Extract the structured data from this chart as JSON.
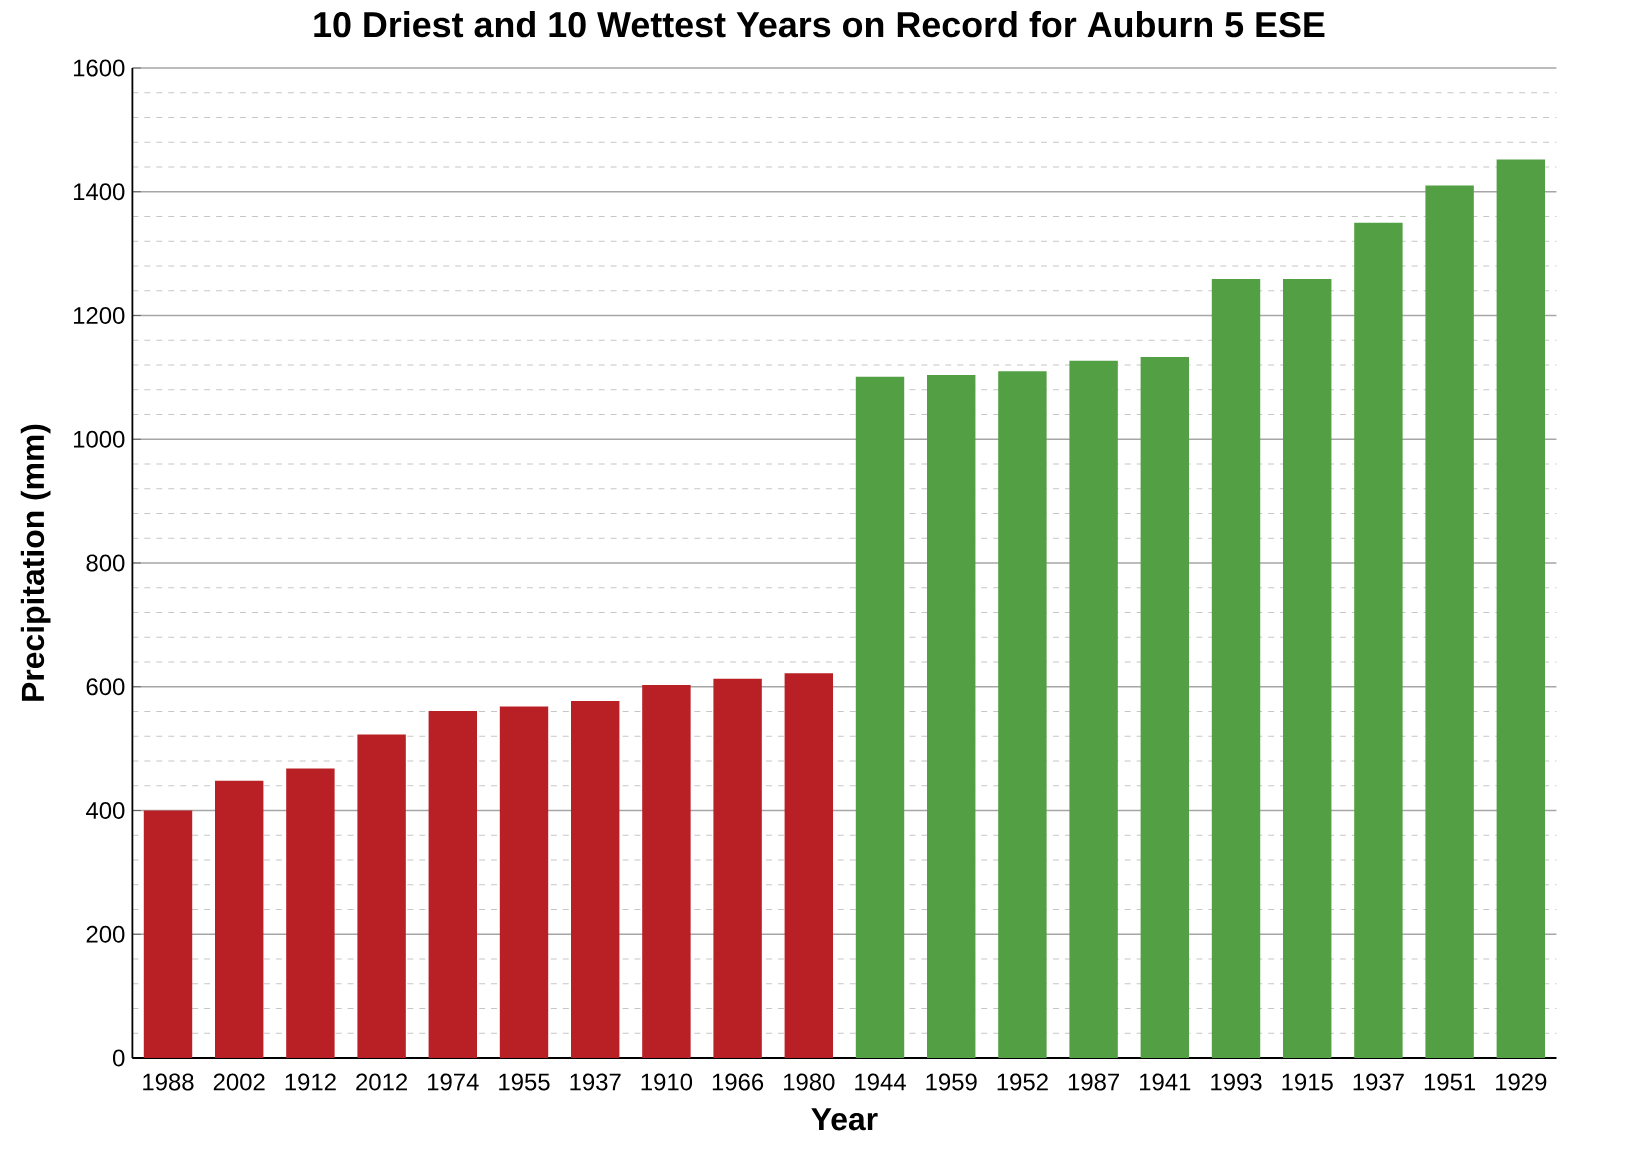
{
  "chart_data": {
    "type": "bar",
    "title": "10 Driest and 10 Wettest Years on Record for Auburn 5 ESE",
    "xlabel": "Year",
    "ylabel": "Precipitation (mm)",
    "categories": [
      "1988",
      "2002",
      "1912",
      "2012",
      "1974",
      "1955",
      "1937",
      "1910",
      "1966",
      "1980",
      "1944",
      "1959",
      "1952",
      "1987",
      "1941",
      "1993",
      "1915",
      "1937",
      "1951",
      "1929"
    ],
    "values": [
      400,
      448,
      468,
      523,
      561,
      568,
      577,
      603,
      613,
      622,
      1101,
      1104,
      1110,
      1127,
      1133,
      1259,
      1259,
      1350,
      1410,
      1452
    ],
    "colors": [
      "#b82025",
      "#b82025",
      "#b82025",
      "#b82025",
      "#b82025",
      "#b82025",
      "#b82025",
      "#b82025",
      "#b82025",
      "#b82025",
      "#52a043",
      "#52a043",
      "#52a043",
      "#52a043",
      "#52a043",
      "#52a043",
      "#52a043",
      "#52a043",
      "#52a043",
      "#52a043"
    ],
    "ylim": [
      0,
      1600
    ],
    "yticks": [
      0,
      200,
      400,
      600,
      800,
      1000,
      1200,
      1400,
      1600
    ],
    "grid": "y"
  }
}
